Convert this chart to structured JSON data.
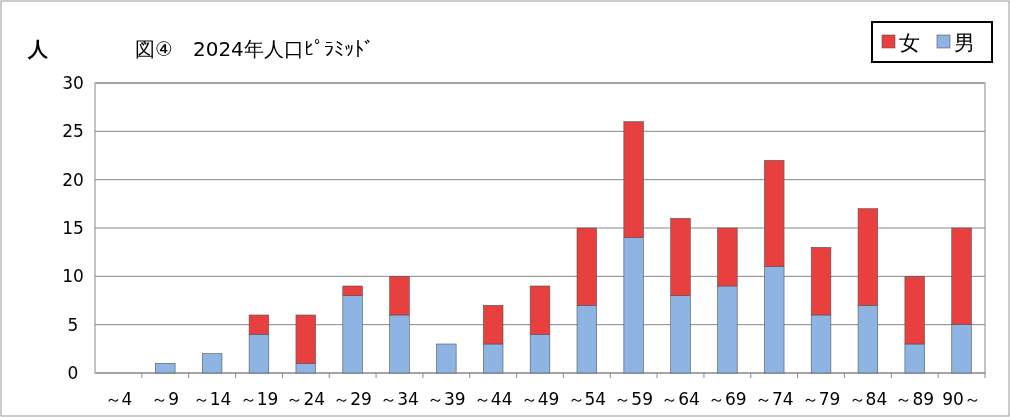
{
  "chart_data": {
    "type": "bar",
    "stacked": true,
    "title": "図④　2024年人口ﾋﾟﾗﾐｯﾄﾞ",
    "ylabel": "人",
    "categories": [
      "～4",
      "～9",
      "～14",
      "～19",
      "～24",
      "～29",
      "～34",
      "～39",
      "～44",
      "～49",
      "～54",
      "～59",
      "～64",
      "～69",
      "～74",
      "～79",
      "～84",
      "～89",
      "90～"
    ],
    "series": [
      {
        "name": "男",
        "color": "#8db4e2",
        "values": [
          0,
          1,
          2,
          4,
          1,
          8,
          6,
          3,
          3,
          4,
          7,
          14,
          8,
          9,
          11,
          6,
          7,
          3,
          5
        ]
      },
      {
        "name": "女",
        "color": "#e8403f",
        "values": [
          0,
          0,
          0,
          2,
          5,
          1,
          4,
          0,
          4,
          5,
          8,
          12,
          8,
          6,
          11,
          7,
          10,
          7,
          10
        ]
      }
    ],
    "ylim": [
      0,
      30
    ],
    "yticks": [
      0,
      5,
      10,
      15,
      20,
      25,
      30
    ],
    "grid": "y",
    "legend": "top right"
  }
}
